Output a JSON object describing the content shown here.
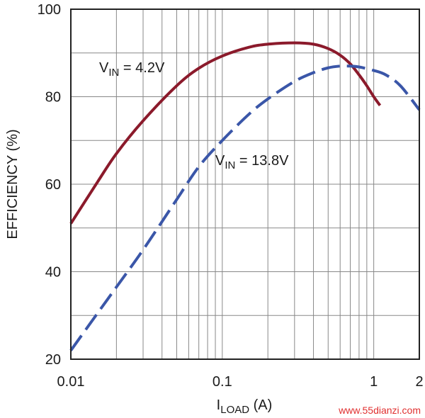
{
  "chart_data": {
    "type": "line",
    "xscale": "log",
    "xlim": [
      0.01,
      2
    ],
    "ylim": [
      20,
      100
    ],
    "xlabel_main": "I",
    "xlabel_sub": "LOAD",
    "xlabel_unit": " (A)",
    "ylabel": "EFFICIENCY (%)",
    "grid": true,
    "x_ticks": [
      {
        "value": 0.01,
        "label": "0.01"
      },
      {
        "value": 0.1,
        "label": "0.1"
      },
      {
        "value": 1,
        "label": "1"
      },
      {
        "value": 2,
        "label": "2"
      }
    ],
    "y_ticks": [
      {
        "value": 20,
        "label": "20"
      },
      {
        "value": 40,
        "label": "40"
      },
      {
        "value": 60,
        "label": "60"
      },
      {
        "value": 80,
        "label": "80"
      },
      {
        "value": 100,
        "label": "100"
      }
    ],
    "series": [
      {
        "name": "VIN = 4.2V",
        "label_main": "V",
        "label_sub": "IN",
        "label_rest": " = 4.2V",
        "color": "#8b1a2b",
        "style": "solid",
        "x": [
          0.01,
          0.015,
          0.02,
          0.03,
          0.05,
          0.07,
          0.1,
          0.15,
          0.2,
          0.3,
          0.4,
          0.5,
          0.6,
          0.7,
          0.8,
          0.9,
          1.0,
          1.1
        ],
        "y": [
          51.0,
          60.5,
          67.0,
          74.5,
          82.5,
          86.5,
          89.3,
          91.3,
          92.0,
          92.3,
          92.0,
          91.0,
          89.5,
          87.5,
          85.0,
          82.5,
          80.0,
          78.0
        ]
      },
      {
        "name": "VIN = 13.8V",
        "label_main": "V",
        "label_sub": "IN",
        "label_rest": " = 13.8V",
        "color": "#3a56a8",
        "style": "dashed",
        "x": [
          0.01,
          0.015,
          0.02,
          0.03,
          0.05,
          0.07,
          0.1,
          0.15,
          0.2,
          0.3,
          0.4,
          0.5,
          0.6,
          0.7,
          0.8,
          1.0,
          1.2,
          1.5,
          2.0
        ],
        "y": [
          22.0,
          30.5,
          36.5,
          45.0,
          56.5,
          64.0,
          70.0,
          76.0,
          79.5,
          83.5,
          85.5,
          86.6,
          87.0,
          87.0,
          86.8,
          86.0,
          85.0,
          82.5,
          77.0
        ]
      }
    ],
    "watermark": "www.55dianzi.com"
  },
  "colors": {
    "axis": "#222222",
    "grid": "#888888"
  }
}
